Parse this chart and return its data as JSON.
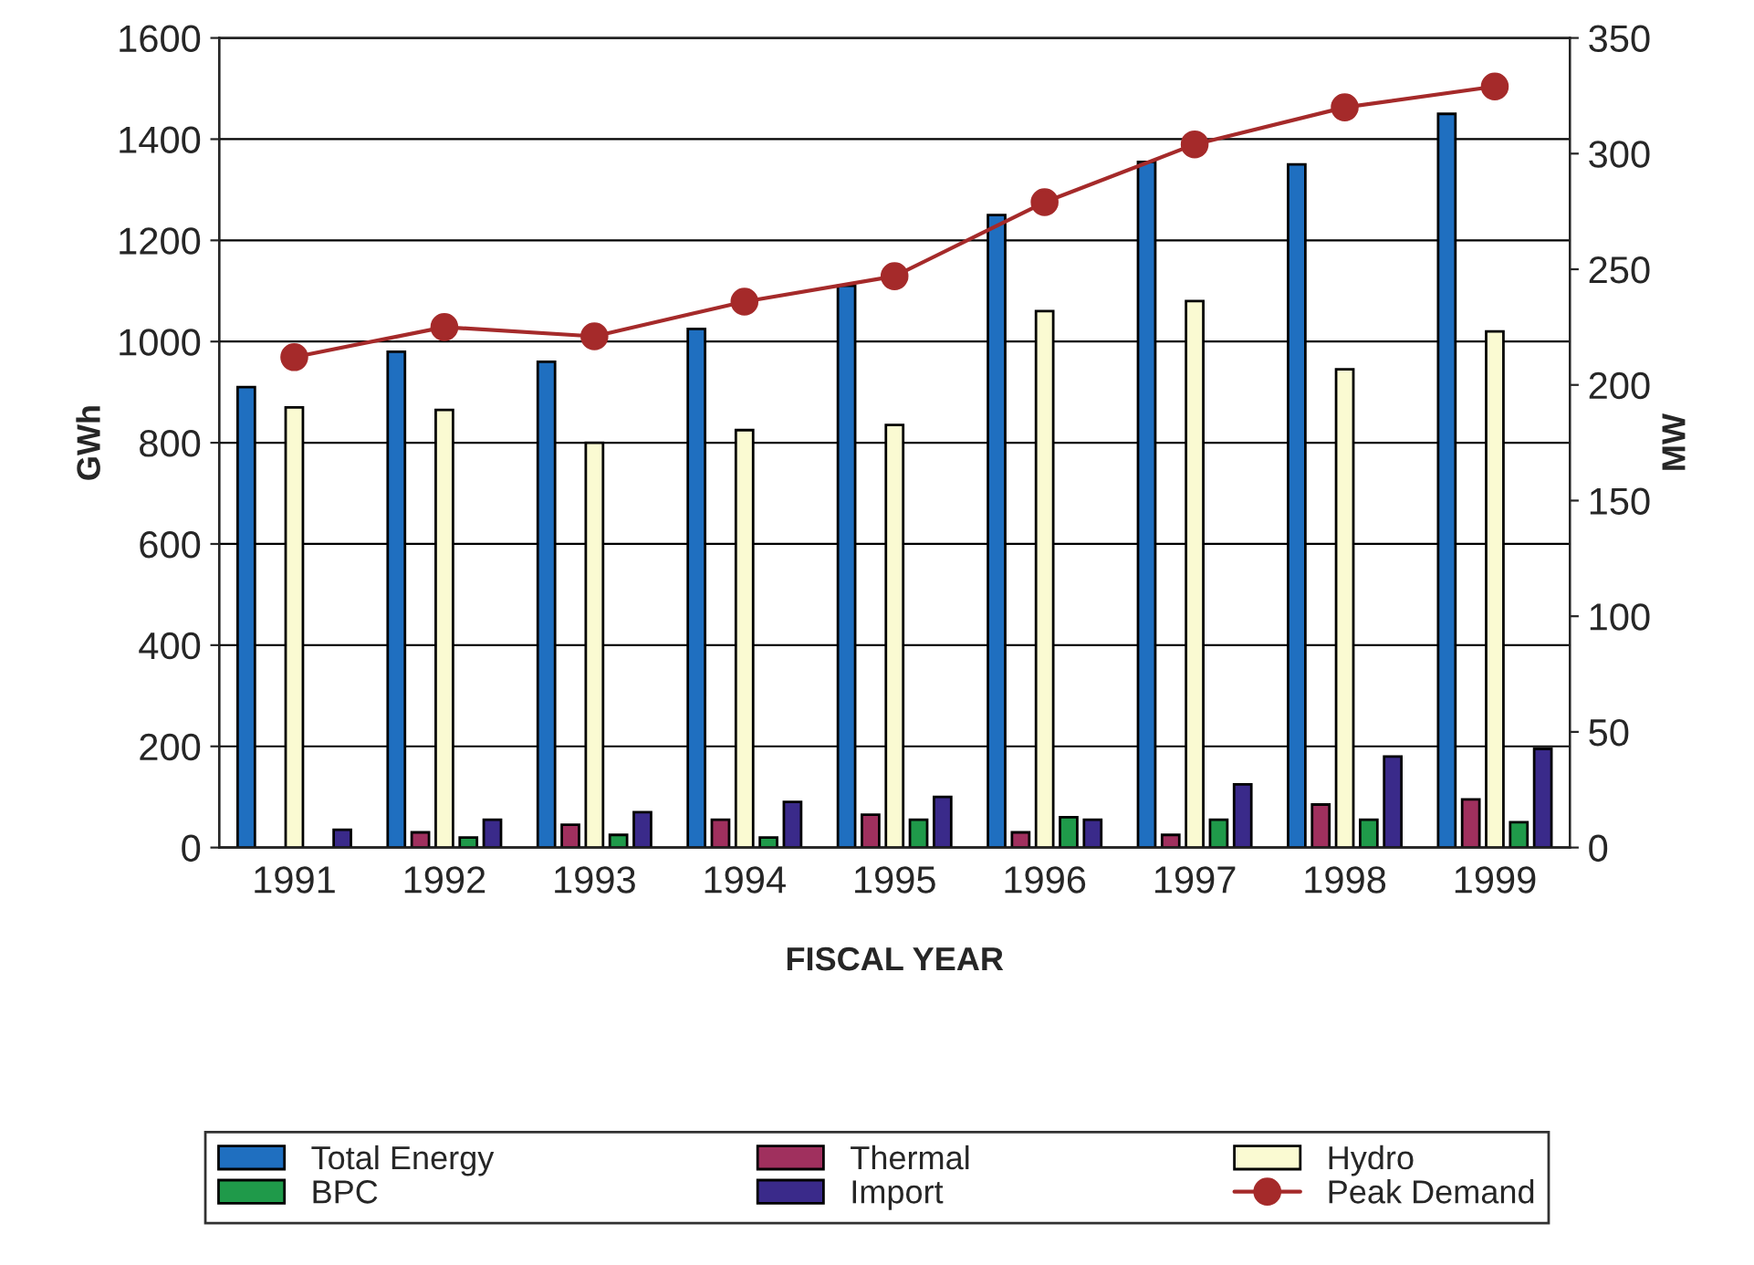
{
  "chart_data": {
    "type": "bar",
    "xlabel": "FISCAL YEAR",
    "ylabel": "GWh",
    "y2label": "MW",
    "categories": [
      "1991",
      "1992",
      "1993",
      "1994",
      "1995",
      "1996",
      "1997",
      "1998",
      "1999"
    ],
    "series": [
      {
        "name": "Total Energy",
        "color": "#1f6fc0",
        "values": [
          910,
          980,
          960,
          1025,
          1110,
          1250,
          1355,
          1350,
          1450
        ]
      },
      {
        "name": "Thermal",
        "color": "#a0305e",
        "values": [
          null,
          30,
          45,
          55,
          65,
          30,
          25,
          85,
          95
        ]
      },
      {
        "name": "Hydro",
        "color": "#fafad2",
        "values": [
          870,
          865,
          800,
          825,
          835,
          1060,
          1080,
          945,
          1020
        ]
      },
      {
        "name": "BPC",
        "color": "#1f9a4a",
        "values": [
          null,
          20,
          25,
          20,
          55,
          60,
          55,
          55,
          50
        ]
      },
      {
        "name": "Import",
        "color": "#3a2a8a",
        "values": [
          35,
          55,
          70,
          90,
          100,
          55,
          125,
          180,
          195
        ]
      },
      {
        "name": "Peak Demand",
        "type": "line",
        "axis": "y2",
        "color": "#a52a2a",
        "marker": "circle",
        "values": [
          212,
          225,
          221,
          236,
          247,
          279,
          304,
          320,
          329
        ]
      }
    ],
    "ylim": [
      0,
      1600
    ],
    "yticks": [
      0,
      200,
      400,
      600,
      800,
      1000,
      1200,
      1400,
      1600
    ],
    "y2lim": [
      0,
      350
    ],
    "y2ticks": [
      0,
      50,
      100,
      150,
      200,
      250,
      300,
      350
    ],
    "grid": "y",
    "legend": "bottom"
  }
}
